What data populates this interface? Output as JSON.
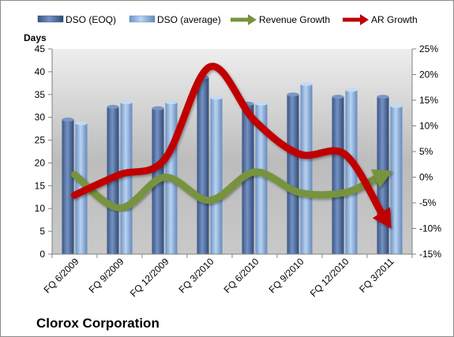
{
  "chart_data": {
    "type": "bar",
    "title": "Clorox Corporation",
    "ylabel": "Days",
    "categories": [
      "FQ 6/2009",
      "FQ 9/2009",
      "FQ 12/2009",
      "FQ 3/2010",
      "FQ 6/2010",
      "FQ 9/2010",
      "FQ 12/2010",
      "FQ 3/2011"
    ],
    "ylim": [
      0,
      45
    ],
    "y2lim": [
      -15,
      25
    ],
    "yticks": [
      "0",
      "5",
      "10",
      "15",
      "20",
      "25",
      "30",
      "35",
      "40",
      "45"
    ],
    "y2ticks": [
      "-15%",
      "-10%",
      "-5%",
      "0%",
      "5%",
      "10%",
      "15%",
      "20%",
      "25%"
    ],
    "series": [
      {
        "name": "DSO (EOQ)",
        "type": "bar",
        "axis": "left",
        "color": "#4f6fa6",
        "values": [
          29.5,
          32.3,
          32.0,
          38.8,
          33.0,
          35.0,
          34.5,
          34.5
        ]
      },
      {
        "name": "DSO (average)",
        "type": "bar",
        "axis": "left",
        "color": "#8fb3e0",
        "values": [
          28.7,
          33.3,
          33.3,
          34.3,
          33.0,
          37.3,
          36.0,
          32.5
        ]
      },
      {
        "name": "Revenue Growth",
        "type": "line",
        "axis": "right",
        "unit": "%",
        "color": "#77933c",
        "values": [
          0.5,
          -6.0,
          0.0,
          -4.5,
          1.0,
          -3.0,
          -3.0,
          1.0
        ]
      },
      {
        "name": "AR Growth",
        "type": "line",
        "axis": "right",
        "unit": "%",
        "color": "#c00000",
        "values": [
          -3.5,
          0.5,
          3.5,
          21.5,
          11.0,
          4.5,
          4.5,
          -9.5
        ]
      }
    ],
    "legend": "top",
    "grid": false
  }
}
